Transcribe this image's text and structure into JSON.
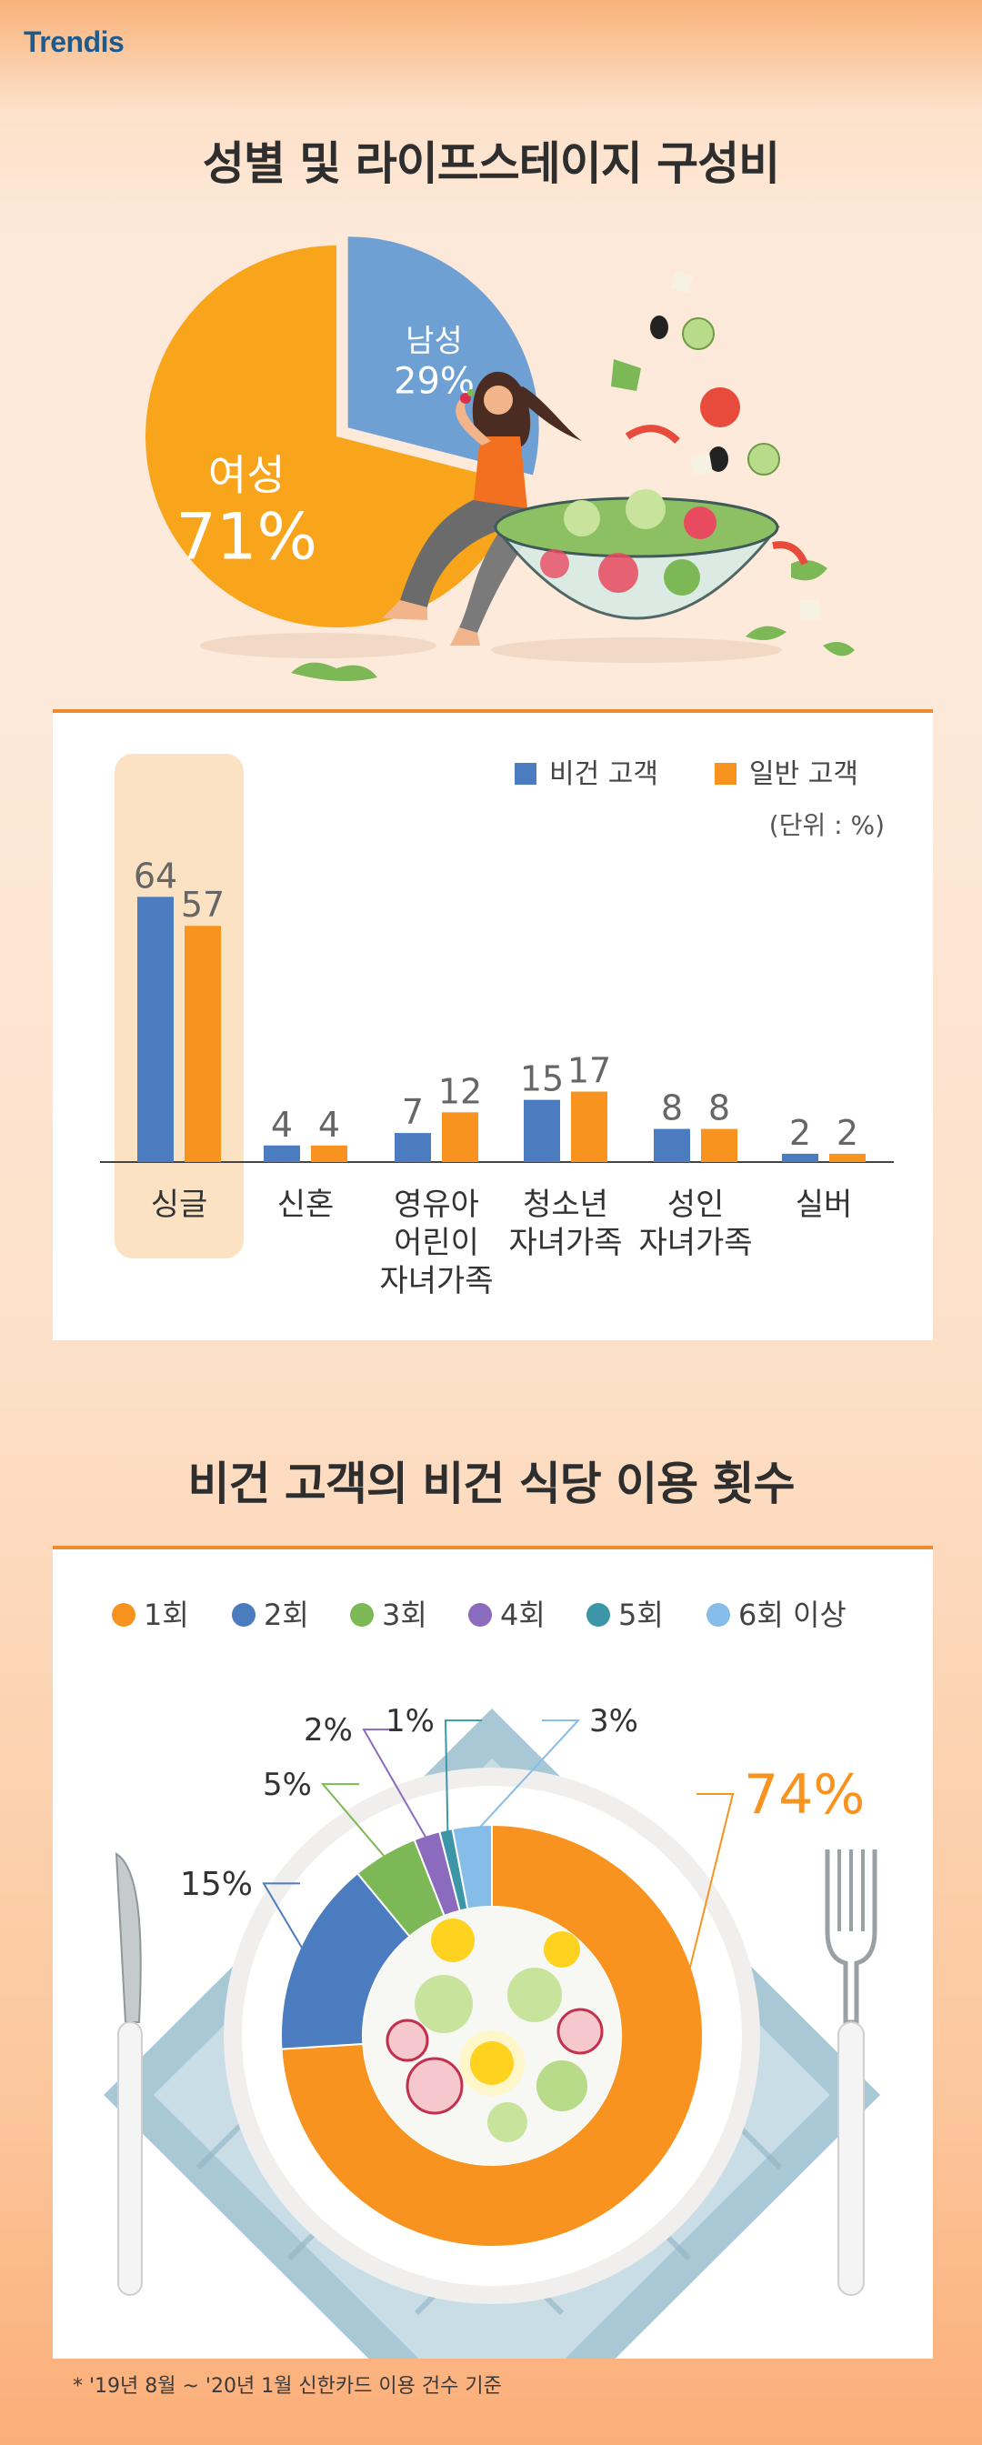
{
  "brand": "Trendis",
  "section1": {
    "title": "성별 및 라이프스테이지 구성비",
    "gender_pie": {
      "type": "pie",
      "slices": [
        {
          "label": "남성",
          "value": 29,
          "value_text": "29%",
          "color": "#6fa0d4"
        },
        {
          "label": "여성",
          "value": 71,
          "value_text": "71%",
          "color": "#f8a51c"
        }
      ]
    }
  },
  "lifestage": {
    "legend": [
      "비건 고객",
      "일반 고객"
    ],
    "unit": "(단위 : %)",
    "colors": {
      "vegan": "#4a7cbf",
      "general": "#f7931e"
    }
  },
  "section2": {
    "title": "비건 고객의 비건 식당 이용 횟수"
  },
  "visits": {
    "legend": [
      "1회",
      "2회",
      "3회",
      "4회",
      "5회",
      "6회 이상"
    ]
  },
  "chart_data": [
    {
      "type": "pie",
      "categories": [
        "남성",
        "여성"
      ],
      "values": [
        29,
        71
      ],
      "title": "성별 및 라이프스테이지 구성비"
    },
    {
      "type": "bar",
      "categories": [
        "싱글",
        "신혼",
        "영유아 어린이 자녀가족",
        "청소년 자녀가족",
        "성인 자녀가족",
        "실버"
      ],
      "category_lines": [
        [
          "싱글"
        ],
        [
          "신혼"
        ],
        [
          "영유아",
          "어린이",
          "자녀가족"
        ],
        [
          "청소년",
          "자녀가족"
        ],
        [
          "성인",
          "자녀가족"
        ],
        [
          "실버"
        ]
      ],
      "series": [
        {
          "name": "비건 고객",
          "values": [
            64,
            4,
            7,
            15,
            8,
            2
          ]
        },
        {
          "name": "일반 고객",
          "values": [
            57,
            4,
            12,
            17,
            8,
            2
          ]
        }
      ],
      "unit": "(단위 : %)",
      "ylim": [
        0,
        70
      ],
      "highlight_category": "싱글"
    },
    {
      "type": "pie",
      "donut": true,
      "title": "비건 고객의 비건 식당 이용 횟수",
      "categories": [
        "1회",
        "2회",
        "3회",
        "4회",
        "5회",
        "6회 이상"
      ],
      "values": [
        74,
        15,
        5,
        2,
        1,
        3
      ],
      "value_labels": [
        "74%",
        "15%",
        "5%",
        "2%",
        "1%",
        "3%"
      ],
      "colors": [
        "#f7931e",
        "#4a7cbf",
        "#7cb856",
        "#8a6bbd",
        "#3c96a8",
        "#86bde8"
      ]
    }
  ],
  "footnote": "* '19년 8월 ~ '20년 1월 신한카드 이용 건수 기준"
}
